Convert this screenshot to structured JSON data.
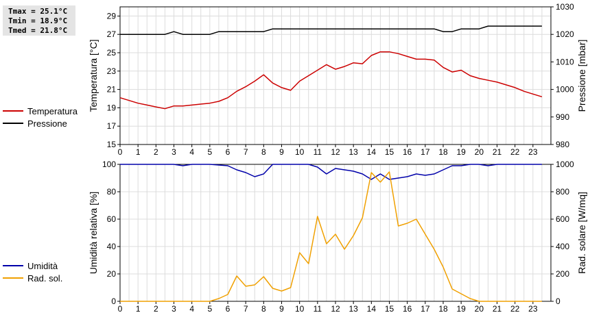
{
  "stats": {
    "tmax": "Tmax = 25.1°C",
    "tmin": "Tmin = 18.9°C",
    "tmed": "Tmed = 21.8°C"
  },
  "legend_top": [
    {
      "label": "Temperatura",
      "color": "#cc0000"
    },
    {
      "label": "Pressione",
      "color": "#000000"
    }
  ],
  "legend_bottom": [
    {
      "label": "Umidità",
      "color": "#0000aa"
    },
    {
      "label": "Rad. sol.",
      "color": "#f0a000"
    }
  ],
  "chart_data": [
    {
      "type": "line",
      "ylabel": "Temperatura [°C]",
      "y2label": "Pressione [mbar]",
      "xlim": [
        0,
        24
      ],
      "ylim": [
        15,
        30
      ],
      "y2lim": [
        980,
        1030
      ],
      "xticks": [
        "0",
        "1",
        "2",
        "3",
        "4",
        "5",
        "6",
        "7",
        "8",
        "9",
        "10",
        "11",
        "12",
        "13",
        "14",
        "15",
        "16",
        "17",
        "18",
        "19",
        "20",
        "21",
        "22",
        "23"
      ],
      "yticks": [
        "15",
        "17",
        "19",
        "21",
        "23",
        "25",
        "27",
        "29"
      ],
      "y2ticks": [
        "980",
        "990",
        "1000",
        "1010",
        "1020",
        "1030"
      ],
      "grid": true,
      "series": [
        {
          "name": "Temperatura",
          "axis": "left",
          "color": "#cc0000",
          "x": [
            0,
            0.5,
            1,
            1.5,
            2,
            2.5,
            3,
            3.5,
            4,
            4.5,
            5,
            5.5,
            6,
            6.5,
            7,
            7.5,
            8,
            8.5,
            9,
            9.5,
            10,
            10.5,
            11,
            11.5,
            12,
            12.5,
            13,
            13.5,
            14,
            14.5,
            15,
            15.5,
            16,
            16.5,
            17,
            17.5,
            18,
            18.5,
            19,
            19.5,
            20,
            20.5,
            21,
            21.5,
            22,
            22.5,
            23,
            23.5
          ],
          "y": [
            20.1,
            19.8,
            19.5,
            19.3,
            19.1,
            18.9,
            19.2,
            19.2,
            19.3,
            19.4,
            19.5,
            19.7,
            20.1,
            20.8,
            21.3,
            21.9,
            22.6,
            21.7,
            21.2,
            20.9,
            21.9,
            22.5,
            23.1,
            23.7,
            23.2,
            23.5,
            23.9,
            23.8,
            24.7,
            25.1,
            25.1,
            24.9,
            24.6,
            24.3,
            24.3,
            24.2,
            23.4,
            22.9,
            23.1,
            22.5,
            22.2,
            22.0,
            21.8,
            21.5,
            21.2,
            20.8,
            20.5,
            20.2
          ]
        },
        {
          "name": "Pressione",
          "axis": "right",
          "color": "#000000",
          "x": [
            0,
            1,
            2,
            2.5,
            3,
            3.5,
            4,
            5,
            5.5,
            6,
            7,
            8,
            8.5,
            9,
            10,
            11,
            12,
            13,
            14,
            15,
            16,
            17,
            17.5,
            18,
            18.5,
            19,
            20,
            20.5,
            21,
            22,
            23,
            23.5
          ],
          "y": [
            1020,
            1020,
            1020,
            1020,
            1021,
            1020,
            1020,
            1020,
            1021,
            1021,
            1021,
            1021,
            1022,
            1022,
            1022,
            1022,
            1022,
            1022,
            1022,
            1022,
            1022,
            1022,
            1022,
            1021,
            1021,
            1022,
            1022,
            1023,
            1023,
            1023,
            1023,
            1023
          ]
        }
      ]
    },
    {
      "type": "line",
      "ylabel": "Umidità relativa [%]",
      "y2label": "Rad. solare [W/mq]",
      "xlim": [
        0,
        24
      ],
      "ylim": [
        0,
        100
      ],
      "y2lim": [
        0,
        1000
      ],
      "xticks": [
        "0",
        "1",
        "2",
        "3",
        "4",
        "5",
        "6",
        "7",
        "8",
        "9",
        "10",
        "11",
        "12",
        "13",
        "14",
        "15",
        "16",
        "17",
        "18",
        "19",
        "20",
        "21",
        "22",
        "23"
      ],
      "yticks": [
        "0",
        "20",
        "40",
        "60",
        "80",
        "100"
      ],
      "y2ticks": [
        "0",
        "200",
        "400",
        "600",
        "800",
        "1000"
      ],
      "grid": true,
      "series": [
        {
          "name": "Umidità",
          "axis": "left",
          "color": "#0000aa",
          "x": [
            0,
            1,
            2,
            3,
            3.5,
            4,
            5,
            6,
            6.5,
            7,
            7.5,
            8,
            8.5,
            9,
            10,
            10.5,
            11,
            11.5,
            12,
            12.5,
            13,
            13.5,
            14,
            14.5,
            15,
            15.5,
            16,
            16.5,
            17,
            17.5,
            18,
            18.5,
            19,
            19.5,
            20,
            20.5,
            21,
            22,
            23,
            23.5
          ],
          "y": [
            100,
            100,
            100,
            100,
            99,
            100,
            100,
            99,
            96,
            94,
            91,
            93,
            100,
            100,
            100,
            100,
            98,
            93,
            97,
            96,
            95,
            93,
            89,
            93,
            89,
            90,
            91,
            93,
            92,
            93,
            96,
            99,
            99,
            100,
            100,
            99,
            100,
            100,
            100,
            100
          ]
        },
        {
          "name": "Rad. sol.",
          "axis": "right",
          "color": "#f0a000",
          "x": [
            0,
            1,
            2,
            3,
            4,
            5,
            5.5,
            6,
            6.5,
            7,
            7.5,
            8,
            8.5,
            9,
            9.5,
            10,
            10.5,
            11,
            11.5,
            12,
            12.5,
            13,
            13.5,
            14,
            14.5,
            15,
            15.5,
            16,
            16.5,
            17,
            17.5,
            18,
            18.5,
            19,
            19.5,
            20,
            21,
            22,
            23,
            23.5
          ],
          "y": [
            0,
            0,
            0,
            0,
            0,
            0,
            20,
            50,
            185,
            110,
            120,
            180,
            95,
            75,
            100,
            355,
            275,
            620,
            420,
            490,
            380,
            480,
            610,
            940,
            870,
            945,
            550,
            570,
            600,
            490,
            380,
            250,
            90,
            55,
            20,
            0,
            0,
            0,
            0,
            0
          ]
        }
      ]
    }
  ]
}
